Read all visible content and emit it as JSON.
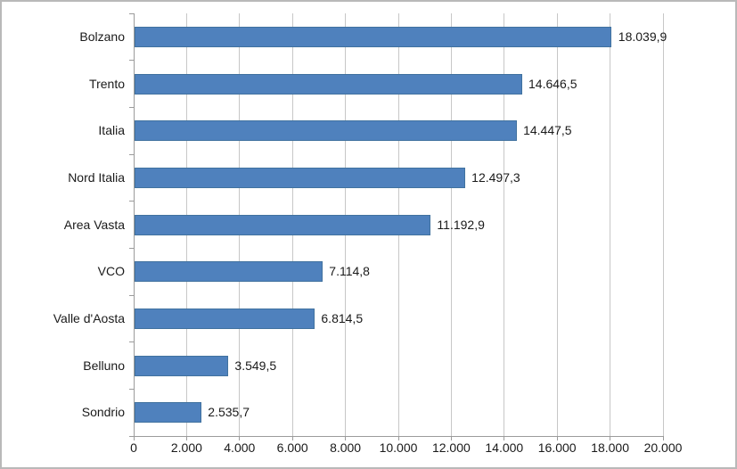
{
  "chart_data": {
    "type": "bar",
    "orientation": "horizontal",
    "title": "",
    "xlabel": "",
    "ylabel": "",
    "legend": "none",
    "grid": "vertical",
    "categories": [
      "Bolzano",
      "Trento",
      "Italia",
      "Nord Italia",
      "Area Vasta",
      "VCO",
      "Valle d'Aosta",
      "Belluno",
      "Sondrio"
    ],
    "values": [
      18039.9,
      14646.5,
      14447.5,
      12497.3,
      11192.9,
      7114.8,
      6814.5,
      3549.5,
      2535.7
    ],
    "value_labels": [
      "18.039,9",
      "14.646,5",
      "14.447,5",
      "12.497,3",
      "11.192,9",
      "7.114,8",
      "6.814,5",
      "3.549,5",
      "2.535,7"
    ],
    "x_axis": {
      "min": 0,
      "max": 20000,
      "step": 2000,
      "tick_labels": [
        "0",
        "2.000",
        "4.000",
        "6.000",
        "8.000",
        "10.000",
        "12.000",
        "14.000",
        "16.000",
        "18.000",
        "20.000"
      ]
    },
    "colors": {
      "bar_fill": "#4f81bd",
      "bar_border": "#41729f",
      "gridline": "#c7c7c7",
      "axis": "#9b9b9b",
      "label_text": "#1a1a1a",
      "background": "#ffffff",
      "frame_border": "#b9b9b9"
    }
  }
}
